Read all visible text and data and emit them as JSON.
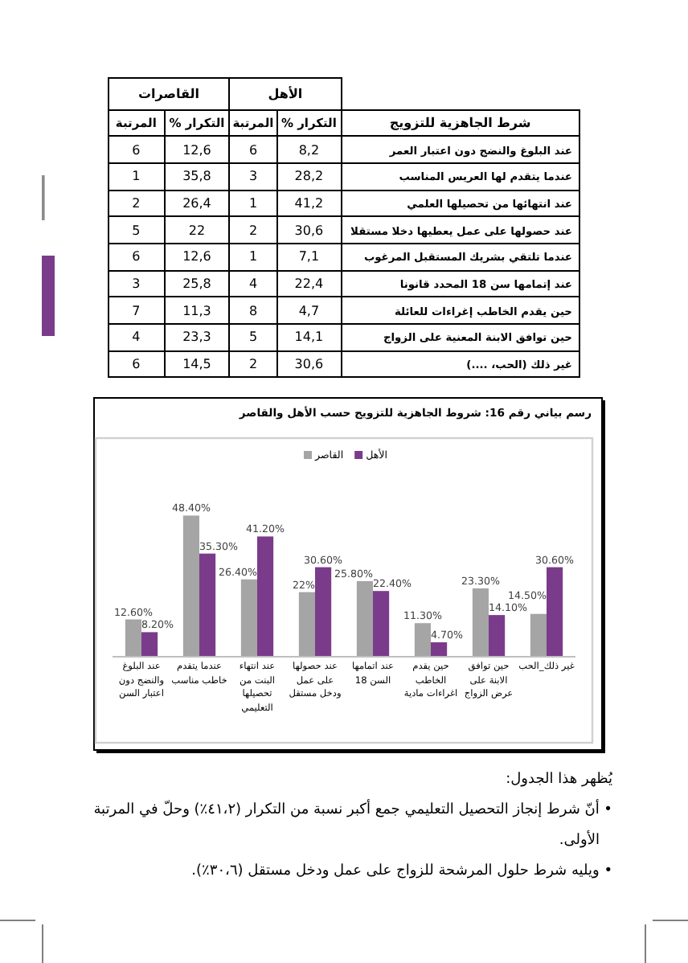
{
  "chart_data": [
    {
      "type": "other",
      "xlabel": "شرط الجاهزية للتزويج",
      "annotations": [
        "الأهل",
        "القاصرات"
      ],
      "categories": [
        "عند البلوغ والنضج دون اعتبار العمر",
        "عندما يتقدم لها العريس المناسب",
        "عند انتهائها من تحصيلها العلمي",
        "عند حصولها على عمل يعطيها دخلا مستقلا",
        "عندما تلتقي بشريك المستقبل المرغوب",
        "عند إتمامها سن 18 المحدد قانونا",
        "حين يقدم الخاطب إغراءات للعائلة",
        "حين توافق الابنة المعنية على الزواج",
        "غير ذلك (الحب، ....)"
      ],
      "series": [
        {
          "name": "التكرار %",
          "values": [
            8.2,
            28.2,
            41.2,
            30.6,
            7.1,
            22.4,
            4.7,
            14.1,
            30.6
          ],
          "value_labels": [
            "8,2",
            "28,2",
            "41,2",
            "30,6",
            "7,1",
            "22,4",
            "4,7",
            "14,1",
            "30,6"
          ]
        },
        {
          "name": "المرتبة",
          "values": [
            6,
            3,
            1,
            2,
            1,
            4,
            8,
            5,
            2
          ],
          "value_labels": [
            "6",
            "3",
            "1",
            "2",
            "1",
            "4",
            "8",
            "5",
            "2"
          ]
        },
        {
          "name": "التكرار %",
          "values": [
            12.6,
            35.8,
            26.4,
            22,
            12.6,
            25.8,
            11.3,
            23.3,
            14.5
          ],
          "value_labels": [
            "12,6",
            "35,8",
            "26,4",
            "22",
            "12,6",
            "25,8",
            "11,3",
            "23,3",
            "14,5"
          ]
        },
        {
          "name": "المرتبة",
          "values": [
            6,
            1,
            2,
            5,
            6,
            3,
            7,
            4,
            6
          ],
          "value_labels": [
            "6",
            "1",
            "2",
            "5",
            "6",
            "3",
            "7",
            "4",
            "6"
          ]
        }
      ]
    },
    {
      "type": "bar",
      "title": "رسم بياني رقم 16: شروط الجاهزية للتزويج حسب الأهل والقاصر",
      "categories": [
        "عند البلوغ والنضج دون اعتبار السن",
        "عندما يتقدم خاطب مناسب",
        "عند انتهاء البنت من تحصيلها التعليمي",
        "عند حصولها على عمل ودخل مستقل",
        "عند اتمامها السن 18",
        "حين يقدم الخاطب اغراءات مادية",
        "حين توافق الابنة على عرض الزواج",
        "غير ذلك_الحب"
      ],
      "series": [
        {
          "name": "القاصر",
          "color": "#a5a5a5",
          "values": [
            12.6,
            48.4,
            26.4,
            22,
            25.8,
            11.3,
            23.3,
            14.5
          ],
          "value_labels": [
            "12.60%",
            "48.40%",
            "26.40%",
            "22%",
            "25.80%",
            "11.30%",
            "23.30%",
            "14.50%"
          ]
        },
        {
          "name": "الأهل",
          "color": "#7b3b8b",
          "values": [
            8.2,
            35.3,
            41.2,
            30.6,
            22.4,
            4.7,
            14.1,
            30.6
          ],
          "value_labels": [
            "8.20%",
            "35.30%",
            "41.20%",
            "30.60%",
            "22.40%",
            "4.70%",
            "14.10%",
            "30.60%"
          ]
        }
      ],
      "legend": "top"
    },
    {
      "type": "other",
      "title": "يُظهر هذا الجدول:",
      "annotations": [
        "• أنّ شرط إنجاز التحصيل التعليمي جمع أكبر نسبة من التكرار (٤١،٢٪) وحلّ في المرتبة الأولى.",
        "• ويليه شرط حلول المرشحة للزواج على عمل ودخل مستقل (٣٠،٦٪)."
      ]
    }
  ]
}
